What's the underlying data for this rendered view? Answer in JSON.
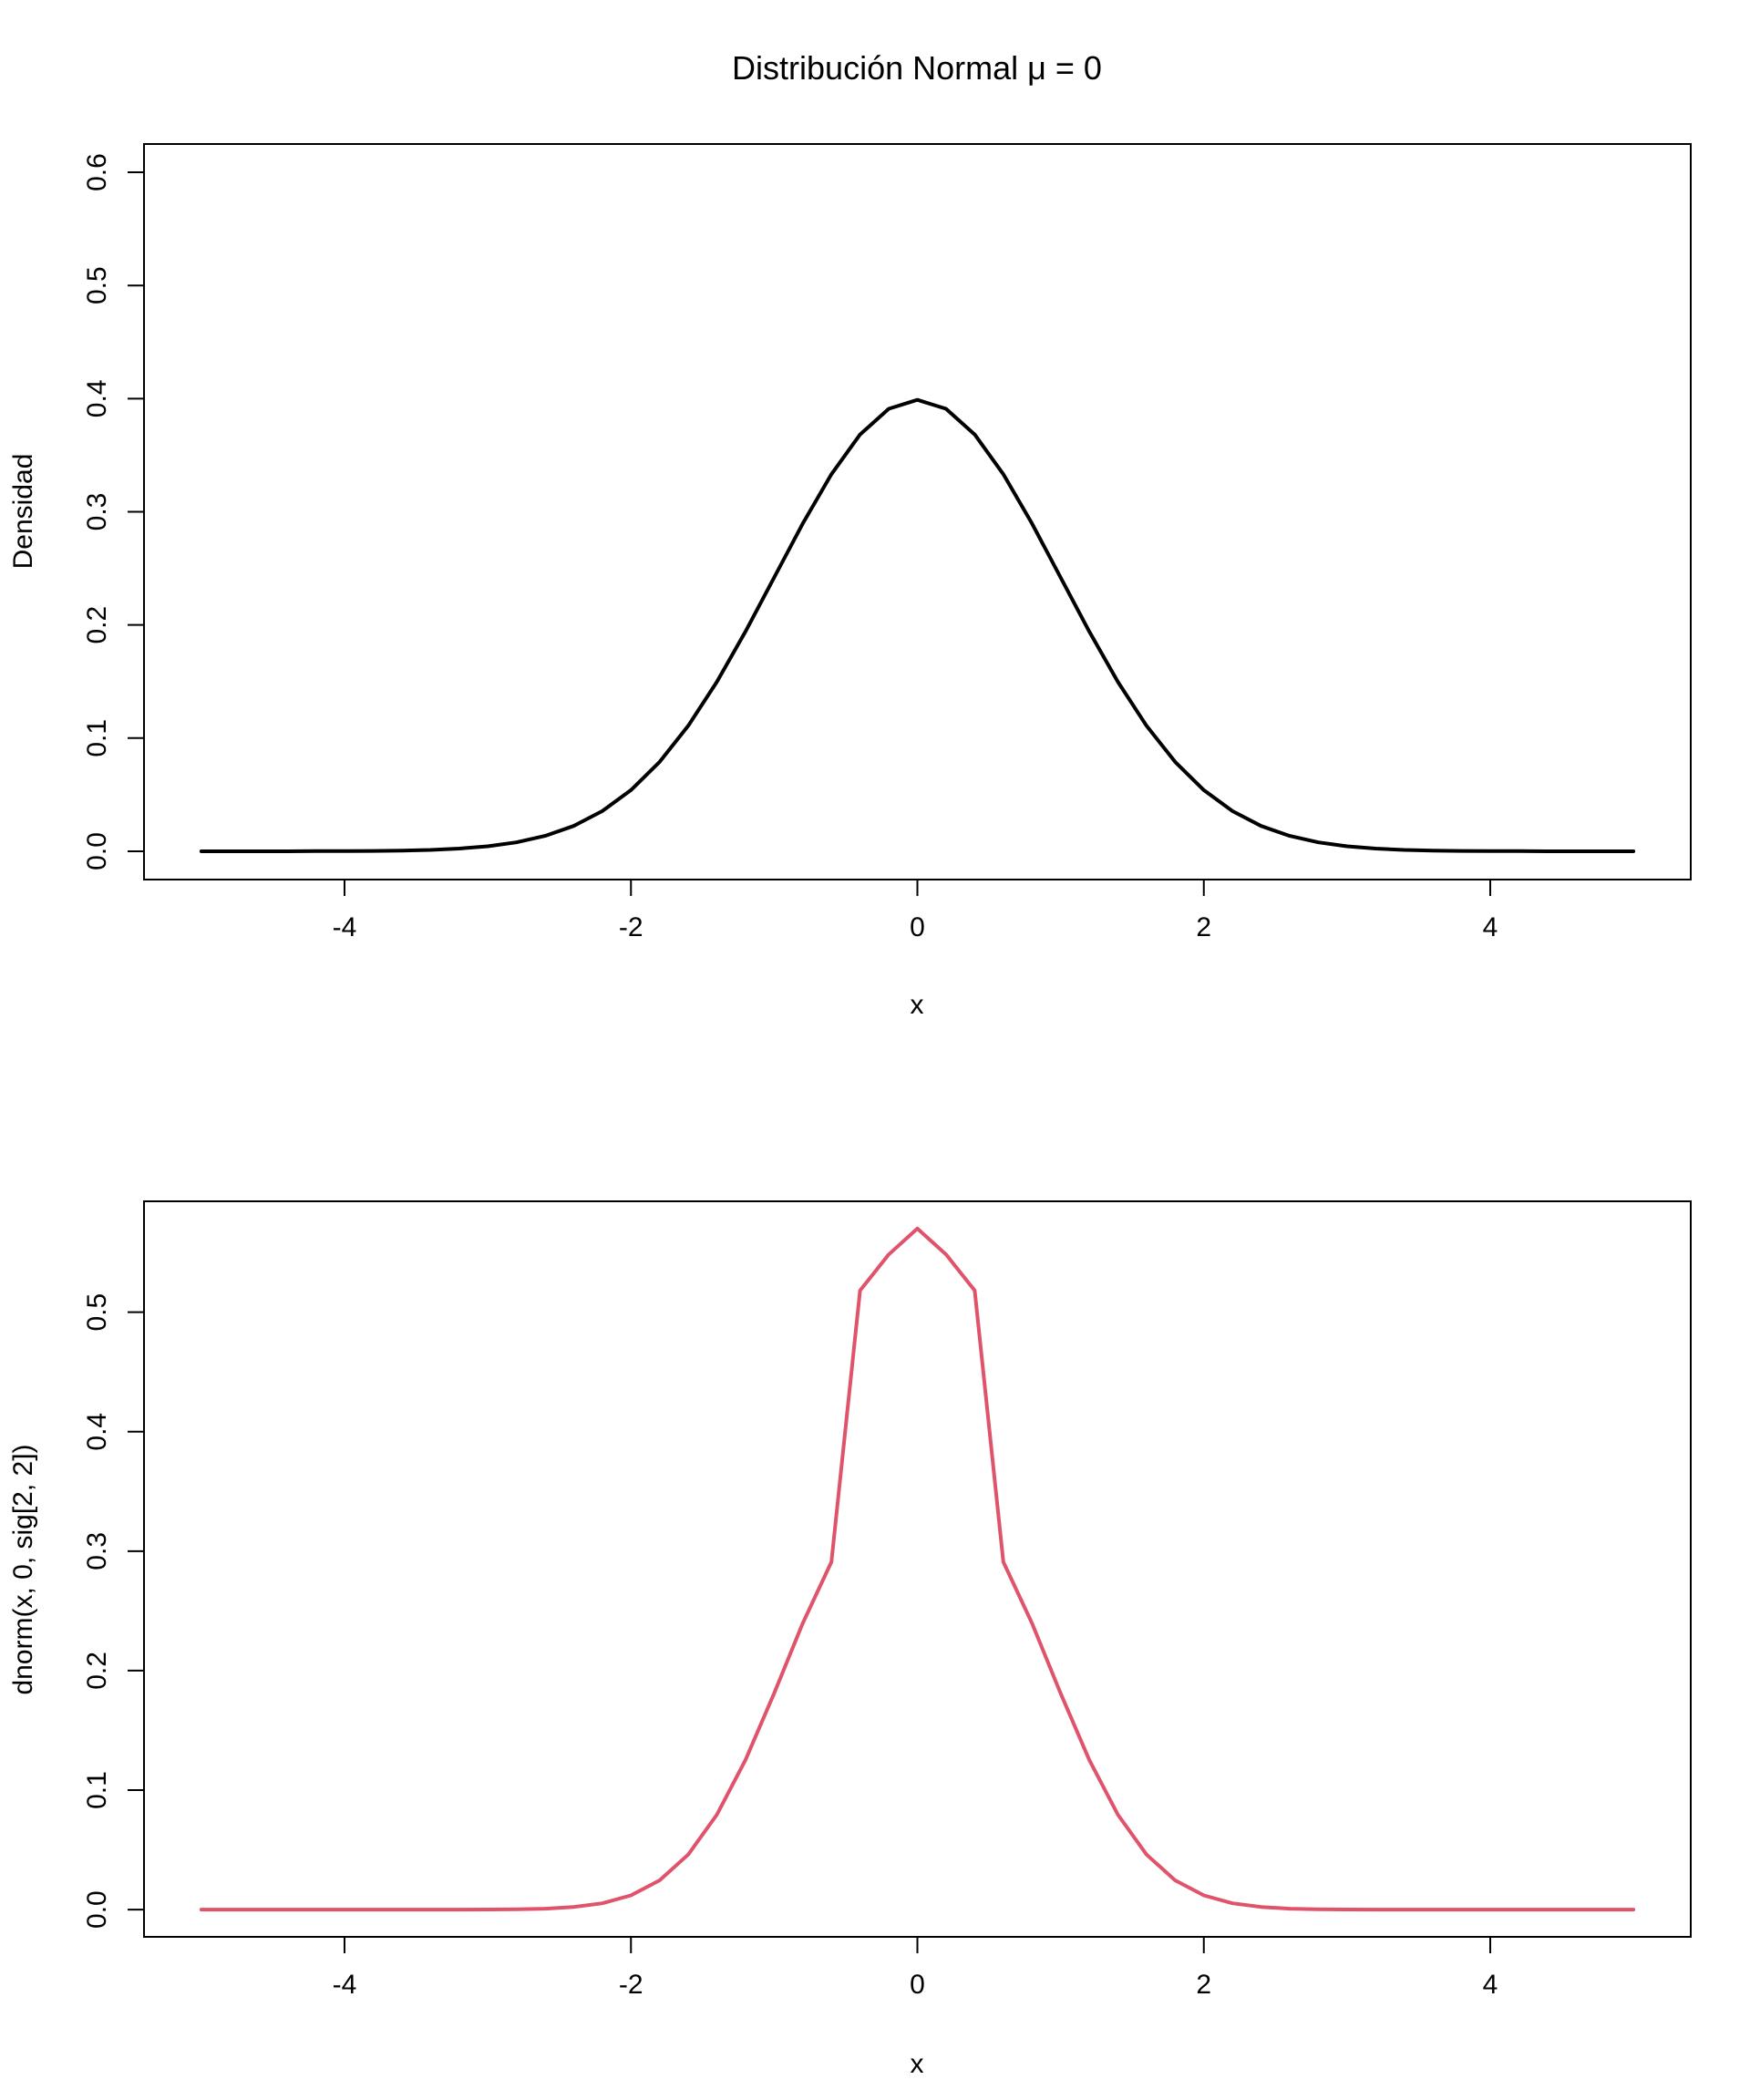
{
  "chart_data": [
    {
      "type": "line",
      "title": "Distribución Normal μ = 0",
      "xlabel": "x",
      "ylabel": "Densidad",
      "xlim": [
        -5.4,
        5.4
      ],
      "ylim": [
        -0.025,
        0.625
      ],
      "xticks": [
        "-4",
        "-2",
        "0",
        "2",
        "4"
      ],
      "yticks": [
        "0.0",
        "0.1",
        "0.2",
        "0.3",
        "0.4",
        "0.5",
        "0.6"
      ],
      "grid": false,
      "series": [
        {
          "color": "#000000",
          "x": [
            -5.0,
            -4.8,
            -4.6,
            -4.4,
            -4.2,
            -4.0,
            -3.8,
            -3.6,
            -3.4,
            -3.2,
            -3.0,
            -2.8,
            -2.6,
            -2.4,
            -2.2,
            -2.0,
            -1.8,
            -1.6,
            -1.4,
            -1.2,
            -1.0,
            -0.8,
            -0.6,
            -0.4,
            -0.2,
            0.0,
            0.2,
            0.4,
            0.6,
            0.8,
            1.0,
            1.2,
            1.4,
            1.6,
            1.8,
            2.0,
            2.2,
            2.4,
            2.6,
            2.8,
            3.0,
            3.2,
            3.4,
            3.6,
            3.8,
            4.0,
            4.2,
            4.4,
            4.6,
            4.8,
            5.0
          ],
          "values": [
            0.0,
            0.0,
            0.0,
            0.0,
            0.0001,
            0.0001,
            0.0003,
            0.0006,
            0.0012,
            0.0024,
            0.0044,
            0.0079,
            0.0136,
            0.0224,
            0.0355,
            0.054,
            0.079,
            0.1109,
            0.1497,
            0.1942,
            0.242,
            0.2897,
            0.3332,
            0.3683,
            0.391,
            0.3989,
            0.391,
            0.3683,
            0.3332,
            0.2897,
            0.242,
            0.1942,
            0.1497,
            0.1109,
            0.079,
            0.054,
            0.0355,
            0.0224,
            0.0136,
            0.0079,
            0.0044,
            0.0024,
            0.0012,
            0.0006,
            0.0003,
            0.0001,
            0.0001,
            0.0,
            0.0,
            0.0,
            0.0
          ]
        }
      ]
    },
    {
      "type": "line",
      "title": "",
      "xlabel": "x",
      "ylabel": "dnorm(x, 0, sig[2, 2])",
      "xlim": [
        -5.4,
        5.4
      ],
      "ylim": [
        -0.0228,
        0.5928
      ],
      "xticks": [
        "-4",
        "-2",
        "0",
        "2",
        "4"
      ],
      "yticks": [
        "0.0",
        "0.1",
        "0.2",
        "0.3",
        "0.4",
        "0.5"
      ],
      "grid": false,
      "series": [
        {
          "color": "#DF536B",
          "x": [
            -5.0,
            -4.8,
            -4.6,
            -4.4,
            -4.2,
            -4.0,
            -3.8,
            -3.6,
            -3.4,
            -3.2,
            -3.0,
            -2.8,
            -2.6,
            -2.4,
            -2.2,
            -2.0,
            -1.8,
            -1.6,
            -1.4,
            -1.2,
            -1.0,
            -0.8,
            -0.6,
            -0.4,
            -0.2,
            0.0,
            0.2,
            0.4,
            0.6,
            0.8,
            1.0,
            1.2,
            1.4,
            1.6,
            1.8,
            2.0,
            2.2,
            2.4,
            2.6,
            2.8,
            3.0,
            3.2,
            3.4,
            3.6,
            3.8,
            4.0,
            4.2,
            4.4,
            4.6,
            4.8,
            5.0
          ],
          "values": [
            0.0,
            0.0,
            0.0,
            0.0,
            0.0,
            0.0,
            0.0,
            0.0,
            0.0,
            0.0,
            0.0001,
            0.0003,
            0.0008,
            0.0022,
            0.0053,
            0.0119,
            0.0245,
            0.0461,
            0.0794,
            0.1253,
            0.1811,
            0.2398,
            0.291,
            0.5181,
            0.5483,
            0.57,
            0.5483,
            0.5181,
            0.291,
            0.2398,
            0.1811,
            0.1253,
            0.0794,
            0.0461,
            0.0245,
            0.0119,
            0.0053,
            0.0022,
            0.0008,
            0.0003,
            0.0001,
            0.0,
            0.0,
            0.0,
            0.0,
            0.0,
            0.0,
            0.0,
            0.0,
            0.0,
            0.0
          ]
        }
      ]
    }
  ]
}
